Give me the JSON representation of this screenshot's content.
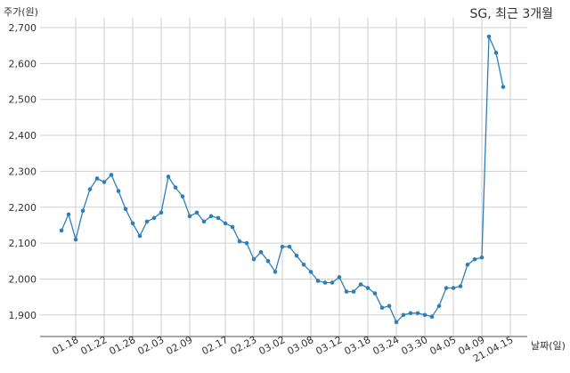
{
  "chart_data": {
    "type": "line",
    "title": "SG, 최근 3개월",
    "ylabel": "주가(원)",
    "xlabel": "날짜(일)",
    "ylim": [
      1850,
      2700
    ],
    "yticks": [
      1900,
      2000,
      2100,
      2200,
      2300,
      2400,
      2500,
      2600,
      2700
    ],
    "ytick_labels": [
      "1,900",
      "2,000",
      "2,100",
      "2,200",
      "2,300",
      "2,400",
      "2,500",
      "2,600",
      "2,700"
    ],
    "xtick_labels": [
      "01.18",
      "01.22",
      "01.28",
      "02.03",
      "02.09",
      "02.17",
      "02.23",
      "03.02",
      "03.08",
      "03.12",
      "03.18",
      "03.24",
      "03.30",
      "04.05",
      "04.09",
      "21.04.15"
    ],
    "xtick_index": [
      2,
      6,
      10,
      14,
      18,
      23,
      27,
      31,
      35,
      39,
      43,
      47,
      51,
      55,
      59,
      63
    ],
    "grid": true,
    "series": [
      {
        "color": "#2e7fb8",
        "values": [
          2135,
          2180,
          2110,
          2190,
          2250,
          2280,
          2270,
          2290,
          2245,
          2195,
          2155,
          2120,
          2160,
          2170,
          2185,
          2285,
          2255,
          2230,
          2175,
          2185,
          2160,
          2175,
          2170,
          2155,
          2145,
          2105,
          2100,
          2055,
          2075,
          2050,
          2020,
          2090,
          2090,
          2065,
          2040,
          2020,
          1995,
          1990,
          1990,
          2005,
          1965,
          1965,
          1985,
          1975,
          1960,
          1920,
          1925,
          1880,
          1900,
          1905,
          1905,
          1900,
          1895,
          1925,
          1975,
          1975,
          1980,
          2040,
          2055,
          2060,
          2675,
          2630,
          2535
        ]
      }
    ]
  }
}
